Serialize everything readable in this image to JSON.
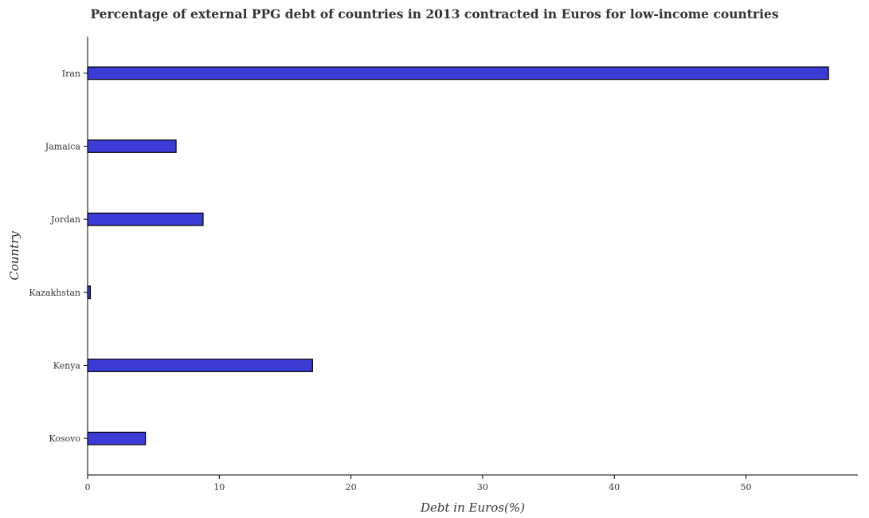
{
  "chart_data": {
    "type": "bar",
    "orientation": "horizontal",
    "title": "Percentage of external PPG debt of countries in 2013 contracted in Euros for low-income countries",
    "xlabel": "Debt in Euros(%)",
    "ylabel": "Country",
    "categories": [
      "Iran",
      "Jamaica",
      "Jordan",
      "Kazakhstan",
      "Kenya",
      "Kosovo"
    ],
    "values": [
      56.27,
      6.72,
      8.77,
      0.21,
      17.08,
      4.39
    ],
    "xlim": [
      0,
      58.5
    ],
    "xticks": [
      0,
      10,
      20,
      30,
      40,
      50
    ],
    "xtick_labels": [
      "0",
      "10",
      "20",
      "30",
      "40",
      "50"
    ],
    "grid": false,
    "colors": {
      "bar_fill": "#3b3bd6",
      "bar_stroke": "#000000",
      "axis": "#000000",
      "text": "#333333"
    }
  }
}
